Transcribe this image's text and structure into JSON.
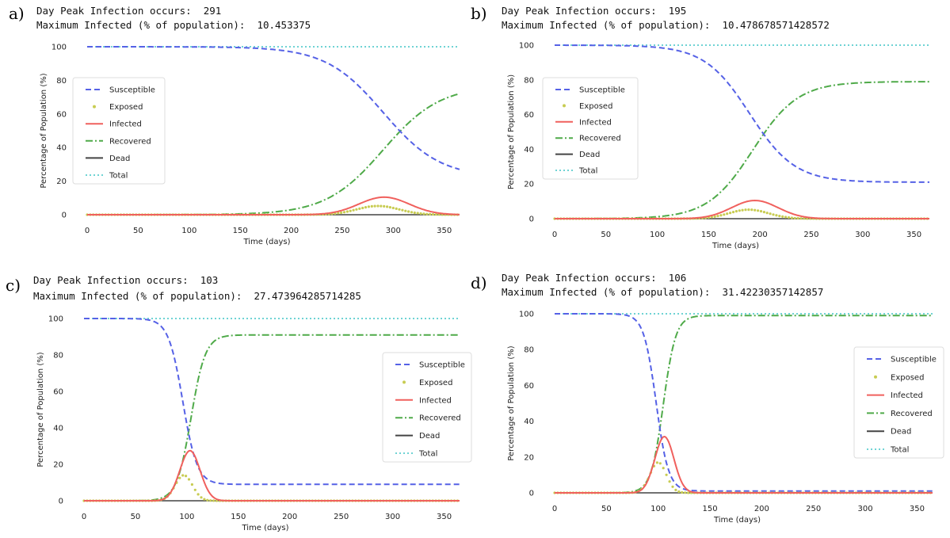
{
  "colors": {
    "Susceptible": "#5561e6",
    "Exposed": "#c8cc52",
    "Infected": "#f0605d",
    "Recovered": "#4faa49",
    "Dead": "#444444",
    "Total": "#6fd3d4"
  },
  "axis_labels": {
    "xlabel": "Time (days)",
    "ylabel": "Percentage of Population (%)"
  },
  "legend_labels": [
    "Susceptible",
    "Exposed",
    "Infected",
    "Recovered",
    "Dead",
    "Total"
  ],
  "chart_data": [
    {
      "panel": "a)",
      "type": "line",
      "info_line1": "Day Peak Infection occurs:  291",
      "info_line2": "Maximum Infected (% of population):  10.453375",
      "xlabel": "Time (days)",
      "ylabel": "Percentage of Population (%)",
      "xlim": [
        0,
        365
      ],
      "ylim": [
        0,
        100
      ],
      "xticks": [
        0,
        50,
        100,
        150,
        200,
        250,
        300,
        350
      ],
      "yticks": [
        0,
        20,
        40,
        60,
        80,
        100
      ],
      "legend_position": "center-left",
      "grid": false,
      "peak_day": 291,
      "peak_infected": 10.45,
      "peak_exposed": 5.2,
      "final_susceptible": 22,
      "final_recovered": 77,
      "susceptible_midpoint": 290,
      "recovered_midpoint": 290,
      "curve_scale": 28,
      "infected_width": 35,
      "dead": 0,
      "total": 100
    },
    {
      "panel": "b)",
      "type": "line",
      "info_line1": "Day Peak Infection occurs:  195",
      "info_line2": "Maximum Infected (% of population):  10.478678571428572",
      "xlabel": "Time (days)",
      "ylabel": "Percentage of Population (%)",
      "xlim": [
        0,
        365
      ],
      "ylim": [
        0,
        100
      ],
      "xticks": [
        0,
        50,
        100,
        150,
        200,
        250,
        300,
        350
      ],
      "yticks": [
        0,
        20,
        40,
        60,
        80,
        100
      ],
      "legend_position": "center-left",
      "grid": false,
      "peak_day": 195,
      "peak_infected": 10.48,
      "peak_exposed": 5.2,
      "final_susceptible": 21,
      "final_recovered": 79,
      "susceptible_midpoint": 190,
      "recovered_midpoint": 193,
      "curve_scale": 22,
      "infected_width": 32,
      "dead": 0,
      "total": 100
    },
    {
      "panel": "c)",
      "type": "line",
      "info_line1": "Day Peak Infection occurs:  103",
      "info_line2": "Maximum Infected (% of population):  27.473964285714285",
      "xlabel": "Time (days)",
      "ylabel": "Percentage of Population (%)",
      "xlim": [
        0,
        365
      ],
      "ylim": [
        0,
        100
      ],
      "xticks": [
        0,
        50,
        100,
        150,
        200,
        250,
        300,
        350
      ],
      "yticks": [
        0,
        20,
        40,
        60,
        80,
        100
      ],
      "legend_position": "center-right",
      "grid": false,
      "peak_day": 103,
      "peak_infected": 27.47,
      "peak_exposed": 14,
      "final_susceptible": 9,
      "final_recovered": 91,
      "susceptible_midpoint": 96,
      "recovered_midpoint": 104,
      "curve_scale": 7,
      "infected_width": 14,
      "dead": 0,
      "total": 100
    },
    {
      "panel": "d)",
      "type": "line",
      "info_line1": "Day Peak Infection occurs:  106",
      "info_line2": "Maximum Infected (% of population):  31.42230357142857",
      "xlabel": "Time (days)",
      "ylabel": "Percentage of Population (%)",
      "xlim": [
        0,
        365
      ],
      "ylim": [
        0,
        100
      ],
      "xticks": [
        0,
        50,
        100,
        150,
        200,
        250,
        300,
        350
      ],
      "yticks": [
        0,
        20,
        40,
        60,
        80,
        100
      ],
      "legend_position": "center-right",
      "grid": false,
      "peak_day": 106,
      "peak_infected": 31.42,
      "peak_exposed": 17,
      "final_susceptible": 1,
      "final_recovered": 99,
      "susceptible_midpoint": 98,
      "recovered_midpoint": 105,
      "curve_scale": 6,
      "infected_width": 13,
      "dead": 0,
      "total": 100
    }
  ]
}
